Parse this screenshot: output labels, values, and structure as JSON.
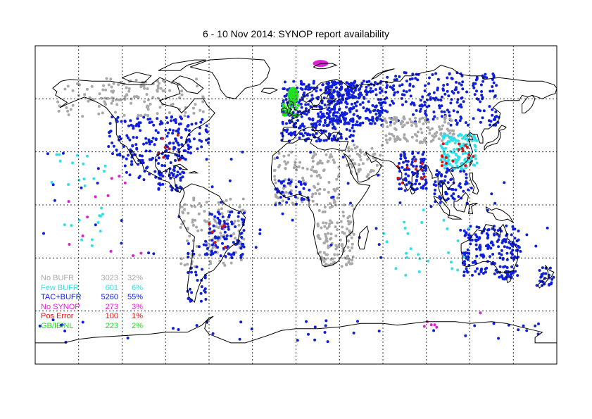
{
  "title": "6 - 10 Nov 2014: SYNOP report availability",
  "colors": {
    "no_bufr": "#a8a8a8",
    "few_bufr": "#30e0e8",
    "tac_bufr": "#1020d8",
    "no_synop": "#e020d0",
    "pos_error": "#e01010",
    "gb_ie_nl": "#20e020",
    "coast": "#000000",
    "grid": "#000000"
  },
  "legend": [
    {
      "label": "No BUFR",
      "count": "3023",
      "pct": "32%",
      "color": "#a8a8a8"
    },
    {
      "label": "Few BUFR",
      "count": "601",
      "pct": "6%",
      "color": "#30e0e8"
    },
    {
      "label": "TAC+BUFR",
      "count": "5260",
      "pct": "55%",
      "color": "#1020d8"
    },
    {
      "label": "No SYNOP",
      "count": "273",
      "pct": "3%",
      "color": "#e020d0"
    },
    {
      "label": "Pos Error",
      "count": "100",
      "pct": "1%",
      "color": "#e01010"
    },
    {
      "label": "GB/IE/NL",
      "count": "223",
      "pct": "2%",
      "color": "#20e020"
    }
  ],
  "map": {
    "projection": "equirectangular",
    "lon_range": [
      -180,
      180
    ],
    "lat_range": [
      -90,
      90
    ],
    "graticule_lon_step": 30,
    "graticule_lat_step": 30
  }
}
